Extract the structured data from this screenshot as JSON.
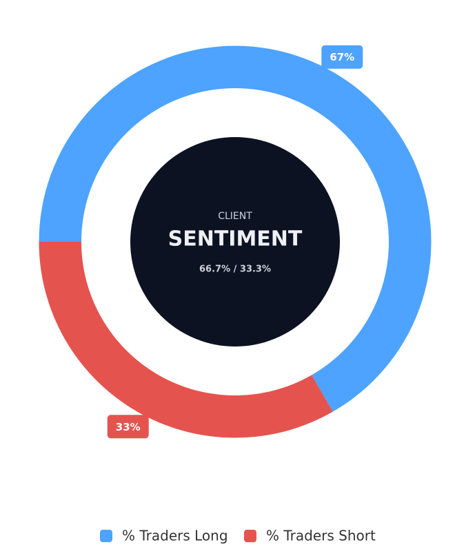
{
  "chart_data": {
    "type": "donut",
    "center_caption": "CLIENT",
    "center_title": "SENTIMENT",
    "center_text": "66.7% / 33.3%",
    "series": [
      {
        "name": "% Traders Long",
        "color": "#4da3ff"
      },
      {
        "name": "% Traders Short",
        "color": "#e5534f"
      }
    ],
    "values": [
      66.7,
      33.3
    ],
    "value_labels": [
      "67%",
      "33%"
    ]
  }
}
